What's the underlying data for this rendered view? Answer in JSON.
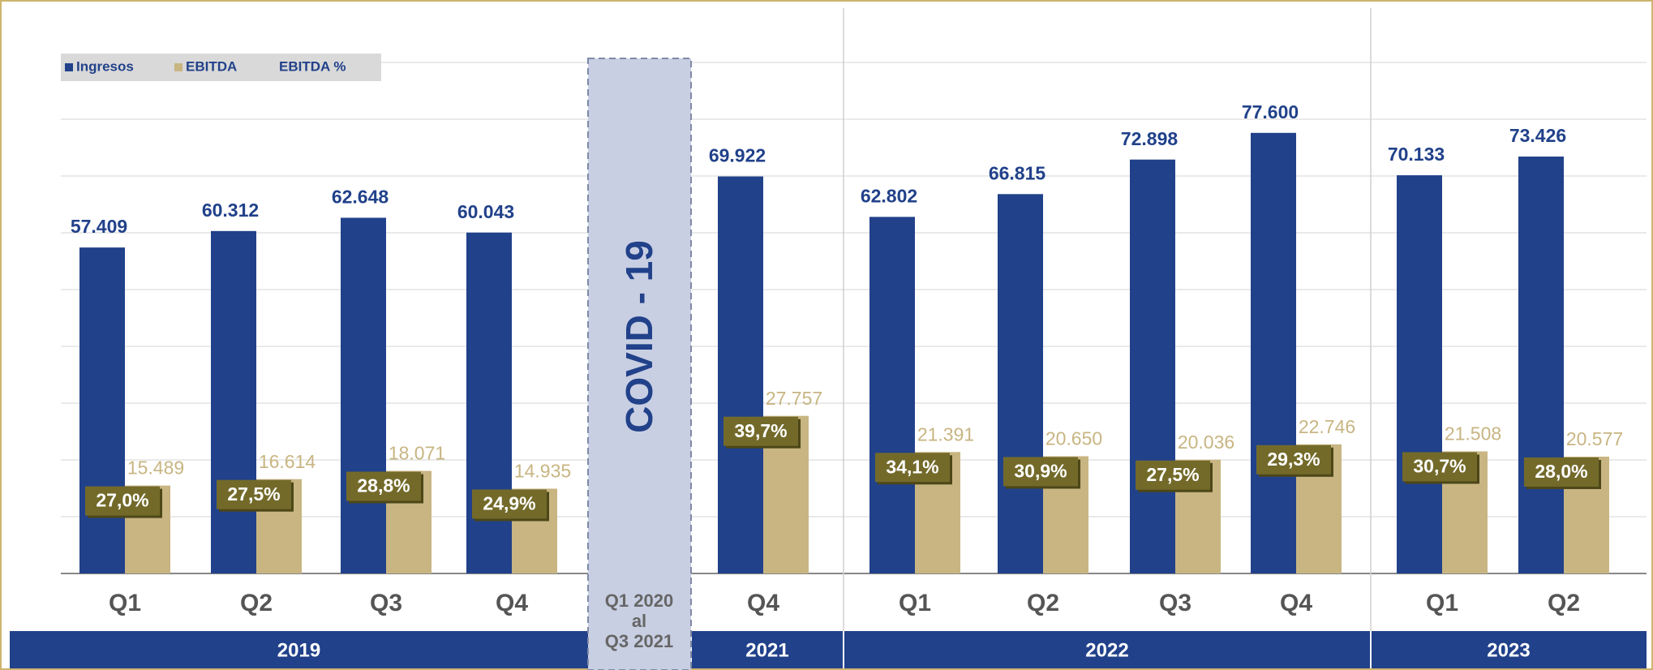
{
  "chart_data": {
    "type": "bar",
    "categories": [
      "Q1",
      "Q2",
      "Q3",
      "Q4",
      "Q4",
      "Q1",
      "Q2",
      "Q3",
      "Q4",
      "Q1",
      "Q2"
    ],
    "years": [
      "2019",
      "2019",
      "2019",
      "2019",
      "2021",
      "2022",
      "2022",
      "2022",
      "2022",
      "2023",
      "2023"
    ],
    "series": [
      {
        "name": "Ingresos",
        "color": "#21418a",
        "values": [
          57409,
          60312,
          62648,
          60043,
          69922,
          62802,
          66815,
          72898,
          77600,
          70133,
          73426
        ],
        "value_labels": [
          "57.409",
          "60.312",
          "62.648",
          "60.043",
          "69.922",
          "62.802",
          "66.815",
          "72.898",
          "77.600",
          "70.133",
          "73.426"
        ]
      },
      {
        "name": "EBITDA",
        "color": "#c8b582",
        "values": [
          15489,
          16614,
          18071,
          14935,
          27757,
          21391,
          20650,
          20036,
          22746,
          21508,
          20577
        ],
        "value_labels": [
          "15.489",
          "16.614",
          "18.071",
          "14.935",
          "27.757",
          "21.391",
          "20.650",
          "20.036",
          "22.746",
          "21.508",
          "20.577"
        ]
      },
      {
        "name": "EBITDA %",
        "color": "#736a2a",
        "values": [
          27.0,
          27.5,
          28.8,
          24.9,
          39.7,
          34.1,
          30.9,
          27.5,
          29.3,
          30.7,
          28.0
        ],
        "value_labels": [
          "27,0%",
          "27,5%",
          "28,8%",
          "24,9%",
          "39,7%",
          "34,1%",
          "30,9%",
          "27,5%",
          "29,3%",
          "30,7%",
          "28,0%"
        ]
      }
    ],
    "covid": {
      "label": "COVID - 19",
      "period_lines": [
        "Q1 2020",
        "al",
        "Q3 2021"
      ]
    },
    "ylim": [
      0,
      90000
    ],
    "yticks": [
      0,
      10000,
      20000,
      30000,
      40000,
      50000,
      60000,
      70000,
      80000,
      90000
    ],
    "grid": true
  }
}
